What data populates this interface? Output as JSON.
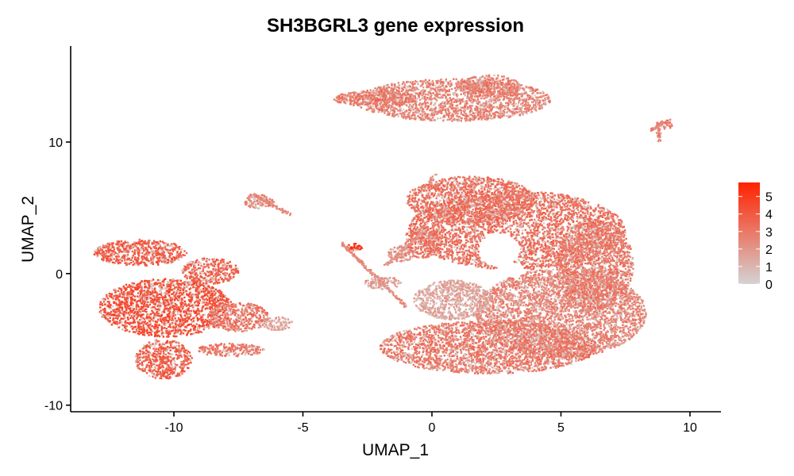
{
  "chart_data": {
    "type": "scatter",
    "title": "SH3BGRL3 gene expression",
    "xlabel": "UMAP_1",
    "ylabel": "UMAP_2",
    "xlim": [
      -14,
      11.2
    ],
    "ylim": [
      -10.5,
      17.3
    ],
    "xticks": [
      -10,
      -5,
      0,
      5,
      10
    ],
    "yticks": [
      -10,
      0,
      10
    ],
    "grid": false,
    "color_low": "#d3d3d3",
    "color_high": "#ff2200",
    "legend": {
      "placement": "right",
      "min": 0,
      "max": 5.8,
      "ticks": [
        0,
        1,
        2,
        3,
        4,
        5
      ]
    },
    "clusters": [
      {
        "cx": 0.8,
        "cy": 13.2,
        "rx": 3.8,
        "ry": 1.6,
        "expr": 2.7
      },
      {
        "cx": -2.2,
        "cy": 13.3,
        "rx": 1.6,
        "ry": 0.6,
        "expr": 3.0
      },
      {
        "cx": 2.2,
        "cy": 14.3,
        "rx": 1.2,
        "ry": 0.8,
        "expr": 2.9
      },
      {
        "cx": 9.0,
        "cy": 11.3,
        "rx": 0.35,
        "ry": 0.3,
        "expr": 3.0
      },
      {
        "cx": -11.3,
        "cy": 1.6,
        "rx": 1.8,
        "ry": 1.0,
        "expr": 3.9
      },
      {
        "cx": -10.3,
        "cy": -2.6,
        "rx": 2.6,
        "ry": 2.2,
        "expr": 4.3
      },
      {
        "cx": -10.4,
        "cy": -6.5,
        "rx": 1.1,
        "ry": 1.5,
        "expr": 3.9
      },
      {
        "cx": -8.6,
        "cy": 0.2,
        "rx": 1.1,
        "ry": 1.0,
        "expr": 3.8
      },
      {
        "cx": -7.5,
        "cy": -3.3,
        "rx": 1.2,
        "ry": 1.1,
        "expr": 3.2
      },
      {
        "cx": -6.0,
        "cy": -3.8,
        "rx": 0.6,
        "ry": 0.5,
        "expr": 1.8
      },
      {
        "cx": -7.8,
        "cy": -5.8,
        "rx": 1.3,
        "ry": 0.5,
        "expr": 3.1
      },
      {
        "cx": 3.3,
        "cy": 3.3,
        "rx": 4.2,
        "ry": 3.0,
        "expr": 3.3
      },
      {
        "cx": 1.5,
        "cy": 5.6,
        "rx": 2.5,
        "ry": 1.8,
        "expr": 3.3
      },
      {
        "cx": 5.0,
        "cy": -3.0,
        "rx": 3.3,
        "ry": 3.4,
        "expr": 2.6
      },
      {
        "cx": 2.2,
        "cy": -5.6,
        "rx": 4.2,
        "ry": 2.0,
        "expr": 3.0
      },
      {
        "cx": 6.3,
        "cy": 0.7,
        "rx": 1.5,
        "ry": 3.4,
        "expr": 3.0
      },
      {
        "cx": 0.8,
        "cy": -2.0,
        "rx": 1.5,
        "ry": 1.5,
        "expr": 1.6
      },
      {
        "cx": -0.4,
        "cy": 2.4,
        "rx": 0.7,
        "ry": 1.2,
        "expr": 3.2
      },
      {
        "cx": -1.2,
        "cy": 1.5,
        "rx": 0.5,
        "ry": 0.6,
        "expr": 2.4
      },
      {
        "cx": -3.0,
        "cy": 2.0,
        "rx": 0.3,
        "ry": 0.3,
        "expr": 5.4
      },
      {
        "cx": -1.9,
        "cy": -0.7,
        "rx": 0.7,
        "ry": 0.5,
        "expr": 2.0
      },
      {
        "cx": -6.7,
        "cy": 5.5,
        "rx": 0.6,
        "ry": 0.55,
        "expr": 2.5
      }
    ],
    "streams": [
      {
        "x1": -7.0,
        "y1": 6.1,
        "x2": -5.5,
        "y2": 4.5,
        "expr": 2.5
      },
      {
        "x1": -3.5,
        "y1": 2.3,
        "x2": -1.0,
        "y2": -2.5,
        "expr": 2.2
      },
      {
        "x1": -1.8,
        "y1": 0.6,
        "x2": -0.4,
        "y2": 3.1,
        "expr": 2.0
      },
      {
        "x1": -0.1,
        "y1": 6.8,
        "x2": 0.1,
        "y2": 7.6,
        "expr": 2.0
      },
      {
        "x1": 8.4,
        "y1": 10.8,
        "x2": 9.2,
        "y2": 11.7,
        "expr": 2.8
      },
      {
        "x1": 8.8,
        "y1": 11.0,
        "x2": 8.8,
        "y2": 10.0,
        "expr": 2.5
      }
    ],
    "holes": [
      {
        "cx": -7.9,
        "cy": -5.0,
        "rx": 0.9,
        "ry": 0.3
      },
      {
        "cx": 2.6,
        "cy": 1.8,
        "rx": 0.8,
        "ry": 1.3
      },
      {
        "cx": 3.1,
        "cy": 0.3,
        "rx": 0.5,
        "ry": 0.6
      }
    ]
  }
}
